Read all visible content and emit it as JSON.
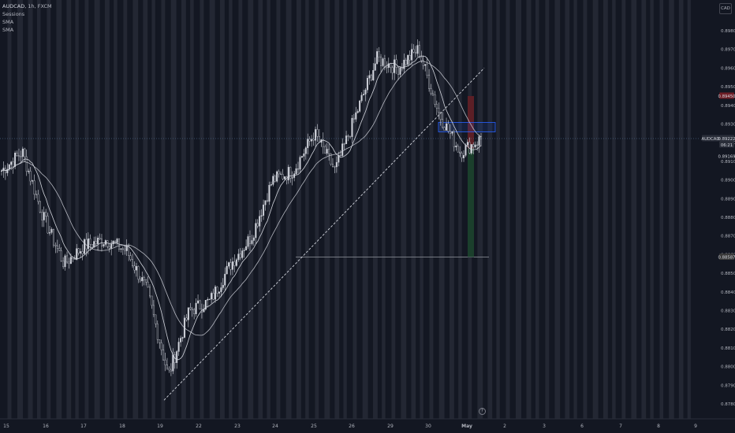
{
  "legend": {
    "symbol": "AUDCAD",
    "interval": "1h",
    "exchange": "FXCM",
    "indicators": [
      "Sessions",
      "SMA",
      "SMA"
    ]
  },
  "currency_badge": "CAD",
  "info_badge": "?",
  "colors": {
    "background": "#131722",
    "session_band": "#2a2e39",
    "candle": "#d1d4dc",
    "sma": "#d1d4dc",
    "trendline": "#d1d4dc",
    "stop_zone": "#5c1f26",
    "target_zone": "#1b3f2c",
    "entry_box": "#2962ff",
    "price_label_bg": "#2a2e39",
    "stop_label_bg": "#6e1e26"
  },
  "chart_data": {
    "type": "candlestick",
    "symbol": "AUDCAD",
    "interval": "1h",
    "y_axis": {
      "ticks": [
        "0.89800",
        "0.89700",
        "0.89600",
        "0.89500",
        "0.89400",
        "0.89300",
        "0.89200",
        "0.89100",
        "0.89000",
        "0.88900",
        "0.88800",
        "0.88700",
        "0.88600",
        "0.88500",
        "0.88400",
        "0.88300",
        "0.88200",
        "0.88100",
        "0.88000",
        "0.87900",
        "0.87800"
      ],
      "range": [
        0.8775,
        0.899
      ]
    },
    "x_axis": {
      "ticks": [
        "15",
        "16",
        "17",
        "18",
        "19",
        "22",
        "23",
        "24",
        "25",
        "26",
        "29",
        "30",
        "May",
        "2",
        "3",
        "6",
        "7",
        "8",
        "9"
      ]
    },
    "price_labels": [
      {
        "text": "0.89450",
        "kind": "stop"
      },
      {
        "text": "AUDCAD",
        "kind": "symbol"
      },
      {
        "text": "0.89222",
        "kind": "last"
      },
      {
        "text": "06:21",
        "kind": "countdown"
      },
      {
        "text": "0.89169",
        "kind": "entry"
      },
      {
        "text": "0.88587",
        "kind": "target"
      }
    ],
    "approx_close_path": [
      {
        "x": "Apr 15",
        "close": 0.8905
      },
      {
        "x": "Apr 15",
        "close": 0.8915
      },
      {
        "x": "Apr 16",
        "close": 0.888
      },
      {
        "x": "Apr 16",
        "close": 0.8855
      },
      {
        "x": "Apr 17",
        "close": 0.8865
      },
      {
        "x": "Apr 18",
        "close": 0.8868
      },
      {
        "x": "Apr 18",
        "close": 0.8862
      },
      {
        "x": "Apr 19",
        "close": 0.884
      },
      {
        "x": "Apr 19",
        "close": 0.8795
      },
      {
        "x": "Apr 22",
        "close": 0.883
      },
      {
        "x": "Apr 23",
        "close": 0.8835
      },
      {
        "x": "Apr 23",
        "close": 0.8855
      },
      {
        "x": "Apr 24",
        "close": 0.887
      },
      {
        "x": "Apr 24",
        "close": 0.89
      },
      {
        "x": "Apr 25",
        "close": 0.8905
      },
      {
        "x": "Apr 25",
        "close": 0.8925
      },
      {
        "x": "Apr 26",
        "close": 0.8905
      },
      {
        "x": "Apr 26",
        "close": 0.8935
      },
      {
        "x": "Apr 29",
        "close": 0.8965
      },
      {
        "x": "Apr 29",
        "close": 0.896
      },
      {
        "x": "Apr 30",
        "close": 0.897
      },
      {
        "x": "Apr 30",
        "close": 0.8935
      },
      {
        "x": "May 1",
        "close": 0.8915
      },
      {
        "x": "May 1",
        "close": 0.8922
      }
    ],
    "trendline": {
      "from": {
        "x": "Apr 19",
        "y": 0.8782
      },
      "to": {
        "x": "May 1",
        "y": 0.896
      },
      "style": "dashed"
    },
    "horizontal_line": {
      "y": 0.88587
    },
    "position": {
      "entry": 0.89169,
      "stop": 0.8945,
      "target": 0.88587,
      "side": "short"
    },
    "legend_items": [
      "Sessions",
      "SMA",
      "SMA"
    ]
  }
}
